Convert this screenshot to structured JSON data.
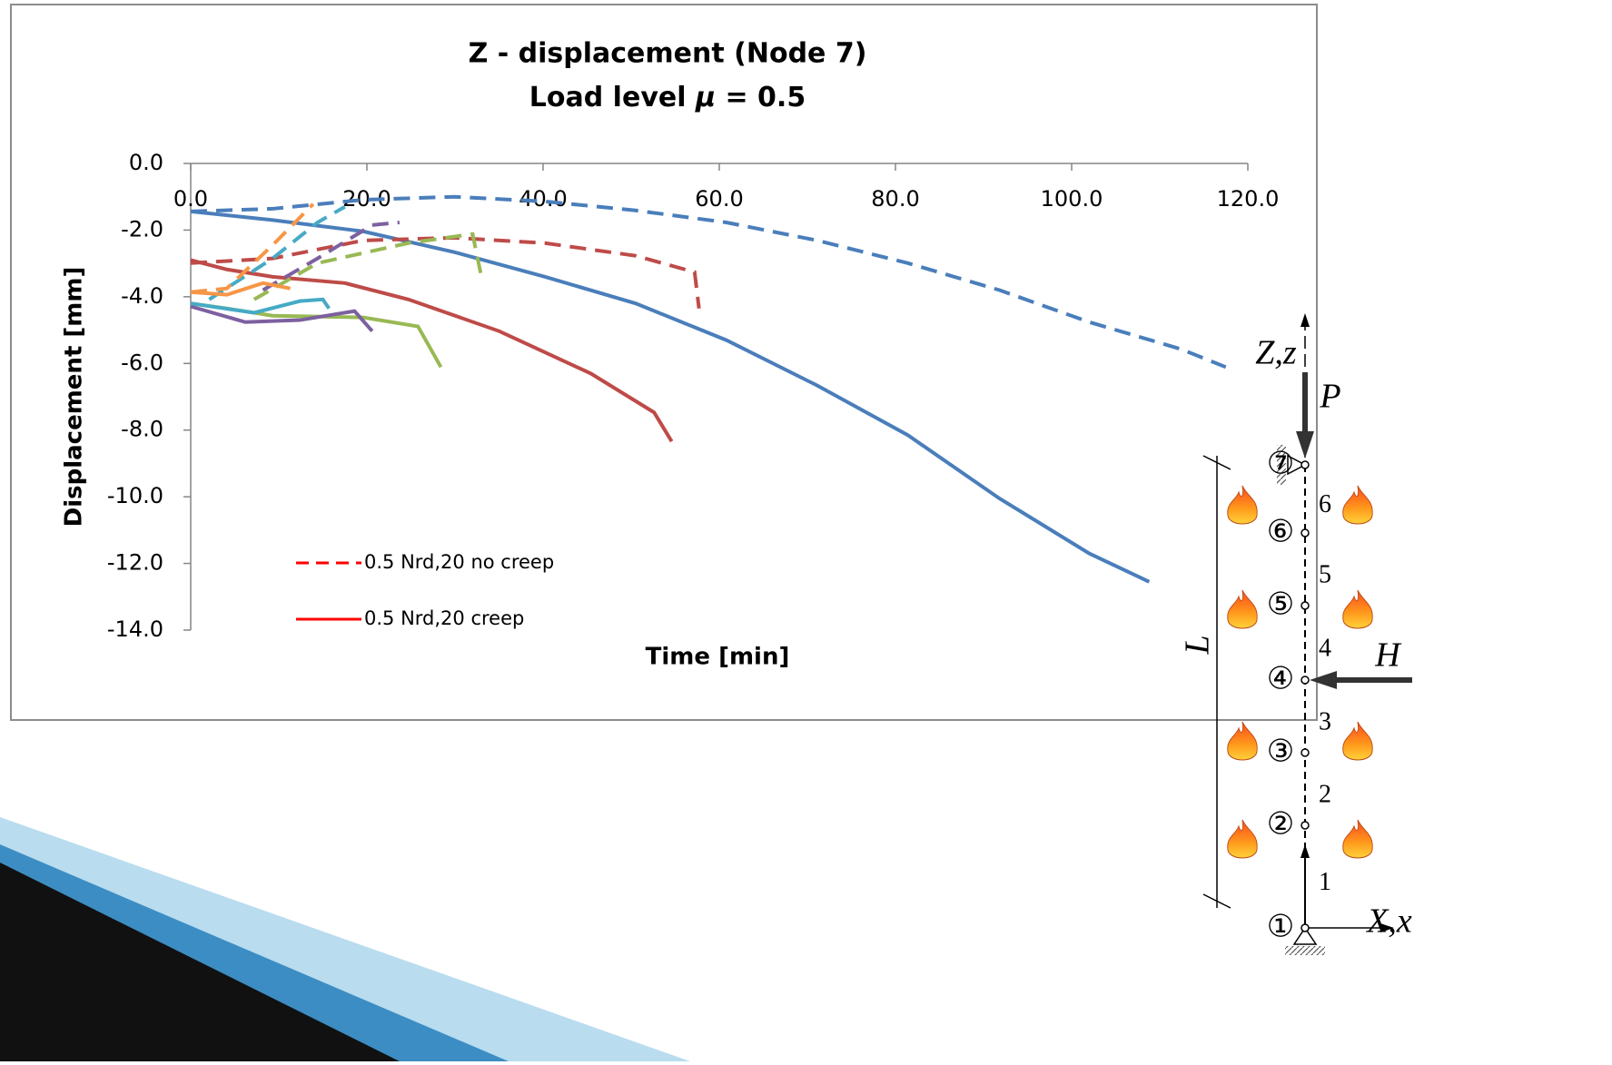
{
  "chart_data": {
    "type": "line",
    "title": "Z - displacement (Node 7)",
    "subtitle_parts": [
      "Load level ",
      "μ",
      " = 0.5"
    ],
    "x_label": "Time [min]",
    "y_label": "Displacement [mm]",
    "xlim": [
      0,
      120
    ],
    "ylim": [
      -14,
      0
    ],
    "xticks": [
      {
        "value": 0,
        "label": "0.0"
      },
      {
        "value": 20,
        "label": "20.0"
      },
      {
        "value": 40,
        "label": "40.0"
      },
      {
        "value": 60,
        "label": "60.0"
      },
      {
        "value": 80,
        "label": "80.0"
      },
      {
        "value": 100,
        "label": "100.0"
      },
      {
        "value": 120,
        "label": "120.0"
      }
    ],
    "yticks": [
      {
        "value": 0,
        "label": "0.0"
      },
      {
        "value": -2,
        "label": "-2.0"
      },
      {
        "value": -4,
        "label": "-4.0"
      },
      {
        "value": -6,
        "label": "-6.0"
      },
      {
        "value": -8,
        "label": "-8.0"
      },
      {
        "value": -10,
        "label": "-10.0"
      },
      {
        "value": -12,
        "label": "-12.0"
      },
      {
        "value": -14,
        "label": "-14.0"
      }
    ],
    "series": [
      {
        "color": "#4a7ebb",
        "dashed": false,
        "x": [
          0,
          9.3,
          19.6,
          29.9,
          40.2,
          50.5,
          60.8,
          71.1,
          81.4,
          91.8,
          102,
          108.8
        ],
        "values": [
          -1.44,
          -1.7,
          -2.04,
          -2.66,
          -3.4,
          -4.2,
          -5.3,
          -6.66,
          -8.15,
          -10.05,
          -11.7,
          -12.55
        ]
      },
      {
        "color": "#4a7ebb",
        "dashed": true,
        "x": [
          0,
          9.3,
          19.6,
          29.9,
          40.2,
          50.5,
          60.8,
          71.1,
          81.4,
          91.8,
          102,
          112.4,
          117.5
        ],
        "values": [
          -1.44,
          -1.36,
          -1.09,
          -1.0,
          -1.14,
          -1.41,
          -1.77,
          -2.31,
          -2.99,
          -3.8,
          -4.76,
          -5.57,
          -6.11
        ]
      },
      {
        "color": "#be4b48",
        "dashed": false,
        "x": [
          0,
          4.1,
          9.3,
          17.5,
          24.7,
          35,
          45.4,
          52.6,
          54.6
        ],
        "values": [
          -2.9,
          -3.18,
          -3.4,
          -3.59,
          -4.08,
          -5.03,
          -6.3,
          -7.47,
          -8.34
        ]
      },
      {
        "color": "#be4b48",
        "dashed": true,
        "x": [
          0,
          9.3,
          19.6,
          29.9,
          40.2,
          50.5,
          57.2,
          57.7
        ],
        "values": [
          -2.99,
          -2.85,
          -2.31,
          -2.23,
          -2.39,
          -2.77,
          -3.26,
          -4.35
        ]
      },
      {
        "color": "#98b954",
        "dashed": false,
        "x": [
          0,
          4.1,
          9.3,
          19.6,
          25.8,
          28.4
        ],
        "values": [
          -4.2,
          -4.35,
          -4.57,
          -4.62,
          -4.89,
          -6.11
        ]
      },
      {
        "color": "#98b954",
        "dashed": true,
        "x": [
          7.2,
          14.4,
          24.7,
          32,
          33
        ],
        "values": [
          -4.08,
          -2.99,
          -2.39,
          -2.12,
          -3.4
        ]
      },
      {
        "color": "#7d60a0",
        "dashed": false,
        "x": [
          0,
          6.2,
          12.4,
          18.6,
          20.6
        ],
        "values": [
          -4.29,
          -4.76,
          -4.7,
          -4.43,
          -5.03
        ]
      },
      {
        "color": "#7d60a0",
        "dashed": true,
        "x": [
          8.2,
          14.4,
          20.6,
          23.7
        ],
        "values": [
          -3.8,
          -2.85,
          -1.85,
          -1.77
        ]
      },
      {
        "color": "#46aac5",
        "dashed": false,
        "x": [
          0,
          7.2,
          12.4,
          15,
          15.7
        ],
        "values": [
          -4.2,
          -4.48,
          -4.13,
          -4.08,
          -4.35
        ]
      },
      {
        "color": "#46aac5",
        "dashed": true,
        "x": [
          2.1,
          9.3,
          14.4,
          17.5
        ],
        "values": [
          -4.08,
          -2.85,
          -1.77,
          -1.3
        ]
      },
      {
        "color": "#f79646",
        "dashed": false,
        "x": [
          0,
          4.1,
          8.2,
          11.3
        ],
        "values": [
          -3.86,
          -3.94,
          -3.59,
          -3.75
        ]
      },
      {
        "color": "#f79646",
        "dashed": true,
        "x": [
          0,
          4.1,
          9.3,
          13.9
        ],
        "values": [
          -3.86,
          -3.75,
          -2.45,
          -1.22
        ]
      }
    ],
    "legend": [
      {
        "label": "0.5 Nrd,20 no creep",
        "color": "#ff0000",
        "dashed": true
      },
      {
        "label": "0.5 Nrd,20 creep",
        "color": "#ff0000",
        "dashed": false
      }
    ]
  },
  "diagram": {
    "axis_z": "Z,z",
    "axis_x": "X,x",
    "load_p": "P",
    "load_h": "H",
    "length": "L",
    "nodes": [
      "①",
      "②",
      "③",
      "④",
      "⑤",
      "⑥",
      "⑦"
    ],
    "elements": [
      "1",
      "2",
      "3",
      "4",
      "5",
      "6"
    ]
  }
}
